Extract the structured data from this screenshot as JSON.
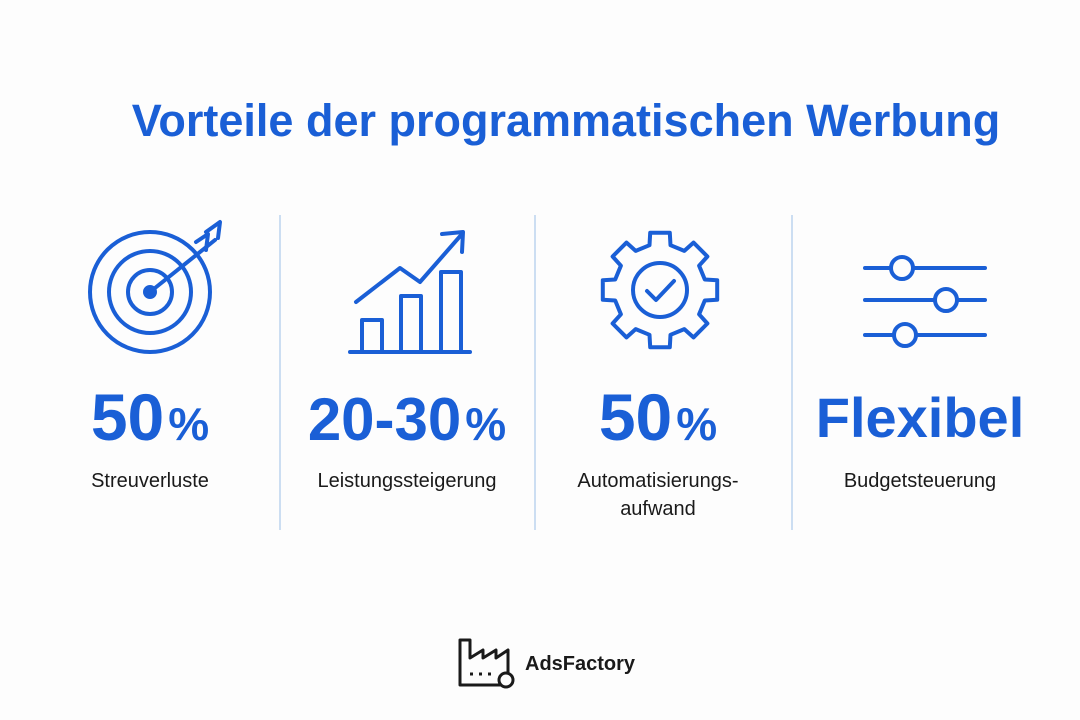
{
  "header": {
    "title": "Vorteile der programmatischen Werbung"
  },
  "items": [
    {
      "value": "50",
      "unit": "%",
      "label_lines": [
        "Streuverluste"
      ]
    },
    {
      "value": "20-30",
      "unit": "%",
      "label_lines": [
        "Leistungssteigerung"
      ]
    },
    {
      "value": "50",
      "unit": "%",
      "label_lines": [
        "Automatisierungs-",
        "aufwand"
      ]
    },
    {
      "value": "Flexibel",
      "label_lines": [
        "Budgetsteuerung"
      ]
    }
  ],
  "footer": {
    "brand": "AdsFactory"
  }
}
